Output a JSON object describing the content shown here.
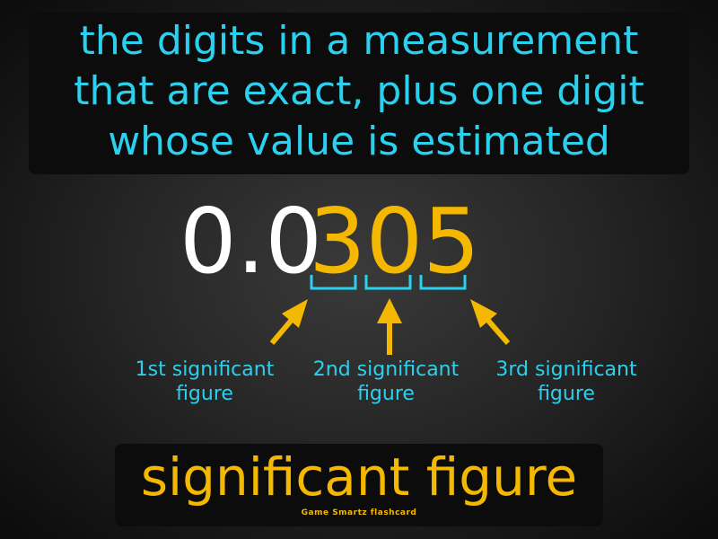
{
  "definition": {
    "lines": [
      "the digits in a measurement",
      "that are exact, plus one digit",
      "whose value is estimated"
    ]
  },
  "number": {
    "prefix": "0.0",
    "significant_digits": "305"
  },
  "labels": {
    "first": [
      "1st significant",
      "figure"
    ],
    "second": [
      "2nd significant",
      "figure"
    ],
    "third": [
      "3rd significant",
      "figure"
    ]
  },
  "term": "significant figure",
  "footer": "Game  Smartz  flashcard",
  "colors": {
    "definition_text": "#2ad0ee",
    "term_text": "#f5b800",
    "bracket": "#2ad0ee",
    "arrow": "#f5b800"
  }
}
